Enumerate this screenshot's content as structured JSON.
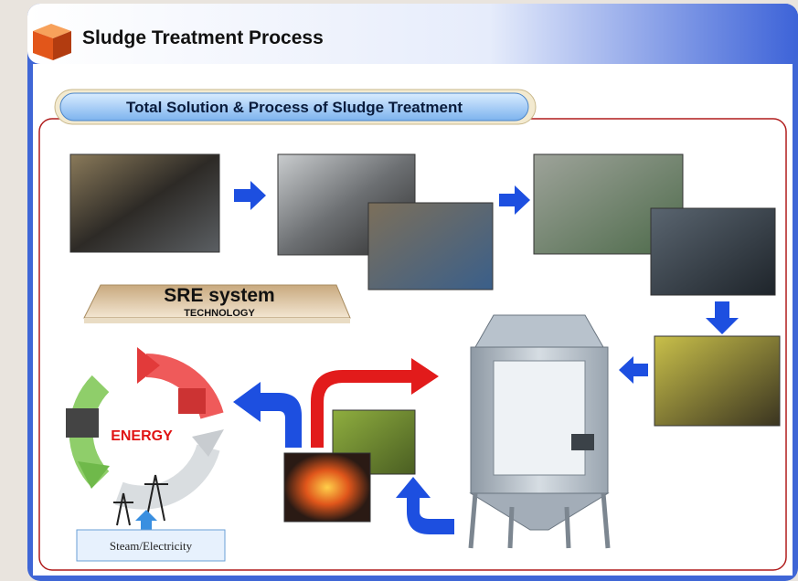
{
  "header": {
    "title": "Sludge Treatment Process"
  },
  "section": {
    "label": "Total Solution & Process of Sludge Treatment"
  },
  "badge": {
    "title": "SRE system",
    "subtitle": "TECHNOLOGY"
  },
  "cycle": {
    "label": "ENERGY"
  },
  "output": {
    "label": "Steam/Electricity"
  }
}
